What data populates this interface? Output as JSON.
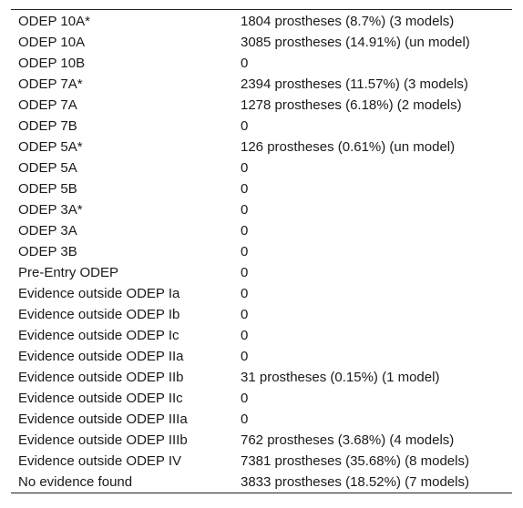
{
  "table": {
    "rows": [
      {
        "level": "ODEP 10A*",
        "value": "1804 prostheses (8.7%) (3 models)"
      },
      {
        "level": "ODEP 10A",
        "value": "3085 prostheses (14.91%) (un model)"
      },
      {
        "level": "ODEP 10B",
        "value": "0"
      },
      {
        "level": "ODEP 7A*",
        "value": "2394 prostheses (11.57%) (3 models)"
      },
      {
        "level": "ODEP 7A",
        "value": "1278 prostheses (6.18%) (2 models)"
      },
      {
        "level": "ODEP 7B",
        "value": "0"
      },
      {
        "level": "ODEP 5A*",
        "value": "126 prostheses (0.61%) (un model)"
      },
      {
        "level": "ODEP 5A",
        "value": "0"
      },
      {
        "level": "ODEP 5B",
        "value": "0"
      },
      {
        "level": "ODEP 3A*",
        "value": "0"
      },
      {
        "level": "ODEP 3A",
        "value": "0"
      },
      {
        "level": "ODEP 3B",
        "value": "0"
      },
      {
        "level": "Pre-Entry ODEP",
        "value": "0"
      },
      {
        "level": "Evidence outside ODEP Ia",
        "value": "0"
      },
      {
        "level": "Evidence outside ODEP Ib",
        "value": "0"
      },
      {
        "level": "Evidence outside ODEP Ic",
        "value": "0"
      },
      {
        "level": "Evidence outside ODEP IIa",
        "value": "0"
      },
      {
        "level": "Evidence outside ODEP IIb",
        "value": "31 prostheses (0.15%) (1 model)"
      },
      {
        "level": "Evidence outside ODEP IIc",
        "value": "0"
      },
      {
        "level": "Evidence outside ODEP IIIa",
        "value": "0"
      },
      {
        "level": "Evidence outside ODEP IIIb",
        "value": "762 prostheses (3.68%) (4 models)"
      },
      {
        "level": "Evidence outside ODEP IV",
        "value": "7381 prostheses (35.68%) (8 models)"
      },
      {
        "level": "No evidence found",
        "value": "3833 prostheses (18.52%) (7 models)"
      }
    ]
  }
}
